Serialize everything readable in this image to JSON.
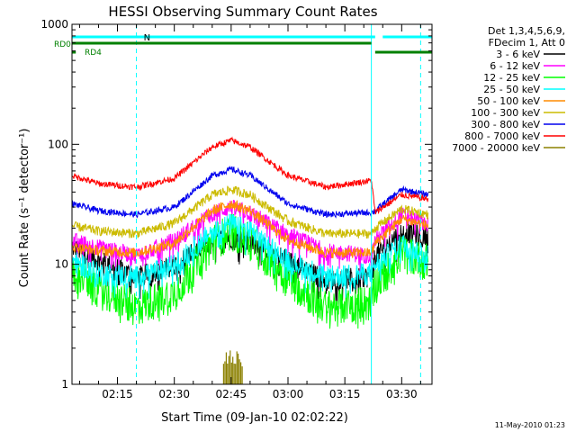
{
  "chart_data": {
    "type": "line",
    "title": "HESSI Observing Summary Count Rates",
    "xlabel": "Start Time (09-Jan-10 02:02:22)",
    "ylabel": "Count Rate (s⁻¹ detector⁻¹)",
    "yscale": "log",
    "xlim": [
      "02:03",
      "03:38"
    ],
    "ylim": [
      1,
      1000
    ],
    "x_ticks": [
      "02:15",
      "02:30",
      "02:45",
      "03:00",
      "03:15",
      "03:30"
    ],
    "y_ticks": [
      "1",
      "10",
      "100",
      "1000"
    ],
    "legend_title_lines": [
      "Det 1,3,4,5,6,9,",
      "FDecim 1, Att 0"
    ],
    "legend_position": "top-right outside plot",
    "grid": false,
    "footer_date": "11-May-2010 01:23",
    "flags": [
      {
        "label": "N",
        "color": "#00ffff",
        "segments": [
          [
            "02:03",
            "03:23"
          ],
          [
            "03:25",
            "03:38"
          ]
        ]
      },
      {
        "label": "RD0",
        "color": "#008000",
        "segments": [
          [
            "02:03",
            "03:22"
          ]
        ]
      },
      {
        "label": "RD4",
        "color": "#008000",
        "segments": [
          [
            "02:03",
            "02:04"
          ],
          [
            "03:23",
            "03:38"
          ]
        ]
      }
    ],
    "event_lines": [
      {
        "time": "02:20",
        "color": "#00ffff",
        "style": "dashed"
      },
      {
        "time": "03:35",
        "color": "#00ffff",
        "style": "dashed"
      },
      {
        "time": "02:03",
        "color": "#00ffff",
        "style": "solid"
      },
      {
        "time": "03:22",
        "color": "#00ffff",
        "style": "solid"
      }
    ],
    "series": [
      {
        "name": "3 - 6 keV",
        "color": "#000000",
        "noise": 0.2,
        "points": [
          [
            "02:03",
            14
          ],
          [
            "02:10",
            11
          ],
          [
            "02:20",
            8
          ],
          [
            "02:30",
            10
          ],
          [
            "02:40",
            16
          ],
          [
            "02:45",
            17
          ],
          [
            "02:50",
            16
          ],
          [
            "03:00",
            11
          ],
          [
            "03:10",
            7.5
          ],
          [
            "03:22",
            8
          ],
          [
            "03:23",
            12
          ],
          [
            "03:30",
            19
          ],
          [
            "03:37",
            17
          ]
        ]
      },
      {
        "name": "6 - 12 keV",
        "color": "#ff00ff",
        "noise": 0.16,
        "points": [
          [
            "02:03",
            16
          ],
          [
            "02:10",
            14
          ],
          [
            "02:20",
            12
          ],
          [
            "02:30",
            16
          ],
          [
            "02:40",
            27
          ],
          [
            "02:45",
            30
          ],
          [
            "02:50",
            27
          ],
          [
            "03:00",
            18
          ],
          [
            "03:10",
            13
          ],
          [
            "03:22",
            12
          ],
          [
            "03:23",
            16
          ],
          [
            "03:30",
            26
          ],
          [
            "03:37",
            22
          ]
        ]
      },
      {
        "name": "12 - 25 keV",
        "color": "#00ff00",
        "noise": 0.35,
        "points": [
          [
            "02:03",
            9
          ],
          [
            "02:10",
            6.5
          ],
          [
            "02:20",
            4.5
          ],
          [
            "02:30",
            6
          ],
          [
            "02:40",
            16
          ],
          [
            "02:45",
            20
          ],
          [
            "02:50",
            16
          ],
          [
            "03:00",
            8
          ],
          [
            "03:10",
            4.5
          ],
          [
            "03:22",
            5
          ],
          [
            "03:23",
            7
          ],
          [
            "03:30",
            13
          ],
          [
            "03:37",
            11
          ]
        ]
      },
      {
        "name": "25 - 50 keV",
        "color": "#00ffff",
        "noise": 0.22,
        "points": [
          [
            "02:03",
            11
          ],
          [
            "02:10",
            8.5
          ],
          [
            "02:20",
            8
          ],
          [
            "02:30",
            10
          ],
          [
            "02:40",
            19
          ],
          [
            "02:45",
            22
          ],
          [
            "02:50",
            19
          ],
          [
            "03:00",
            11
          ],
          [
            "03:10",
            8
          ],
          [
            "03:22",
            8.5
          ],
          [
            "03:23",
            10
          ],
          [
            "03:30",
            15
          ],
          [
            "03:37",
            12
          ]
        ]
      },
      {
        "name": "50 - 100 keV",
        "color": "#ff8c00",
        "noise": 0.1,
        "points": [
          [
            "02:03",
            14
          ],
          [
            "02:10",
            13
          ],
          [
            "02:20",
            12.5
          ],
          [
            "02:30",
            15
          ],
          [
            "02:40",
            28
          ],
          [
            "02:45",
            32
          ],
          [
            "02:50",
            28
          ],
          [
            "03:00",
            16
          ],
          [
            "03:10",
            12.5
          ],
          [
            "03:22",
            12.5
          ],
          [
            "03:23",
            15
          ],
          [
            "03:30",
            24
          ],
          [
            "03:37",
            21
          ]
        ]
      },
      {
        "name": "100 - 300 keV",
        "color": "#ccbb00",
        "noise": 0.09,
        "points": [
          [
            "02:03",
            21
          ],
          [
            "02:10",
            19
          ],
          [
            "02:20",
            18
          ],
          [
            "02:30",
            22
          ],
          [
            "02:40",
            38
          ],
          [
            "02:45",
            42
          ],
          [
            "02:50",
            38
          ],
          [
            "03:00",
            23
          ],
          [
            "03:10",
            18
          ],
          [
            "03:22",
            18
          ],
          [
            "03:23",
            20
          ],
          [
            "03:30",
            29
          ],
          [
            "03:37",
            26
          ]
        ]
      },
      {
        "name": "300 - 800 keV",
        "color": "#0000ee",
        "noise": 0.06,
        "points": [
          [
            "02:03",
            32
          ],
          [
            "02:10",
            28
          ],
          [
            "02:20",
            26
          ],
          [
            "02:30",
            30
          ],
          [
            "02:40",
            55
          ],
          [
            "02:45",
            62
          ],
          [
            "02:50",
            55
          ],
          [
            "03:00",
            32
          ],
          [
            "03:10",
            26
          ],
          [
            "03:22",
            27
          ],
          [
            "03:23",
            28
          ],
          [
            "03:30",
            42
          ],
          [
            "03:37",
            38
          ]
        ]
      },
      {
        "name": "800 - 7000 keV",
        "color": "#ff0000",
        "noise": 0.06,
        "points": [
          [
            "02:03",
            55
          ],
          [
            "02:10",
            47
          ],
          [
            "02:20",
            44
          ],
          [
            "02:30",
            52
          ],
          [
            "02:40",
            95
          ],
          [
            "02:45",
            108
          ],
          [
            "02:50",
            95
          ],
          [
            "03:00",
            55
          ],
          [
            "03:10",
            44
          ],
          [
            "03:22",
            50
          ],
          [
            "03:23",
            27
          ],
          [
            "03:30",
            38
          ],
          [
            "03:37",
            35
          ]
        ]
      },
      {
        "name": "7000 - 20000 keV",
        "color": "#8b8000",
        "noise": 0,
        "points": [
          [
            "02:43",
            1.5
          ],
          [
            "02:44",
            1.7
          ],
          [
            "02:45",
            1.8
          ],
          [
            "02:46",
            1.6
          ],
          [
            "02:47",
            1.7
          ],
          [
            "02:48",
            1.4
          ]
        ]
      }
    ]
  }
}
